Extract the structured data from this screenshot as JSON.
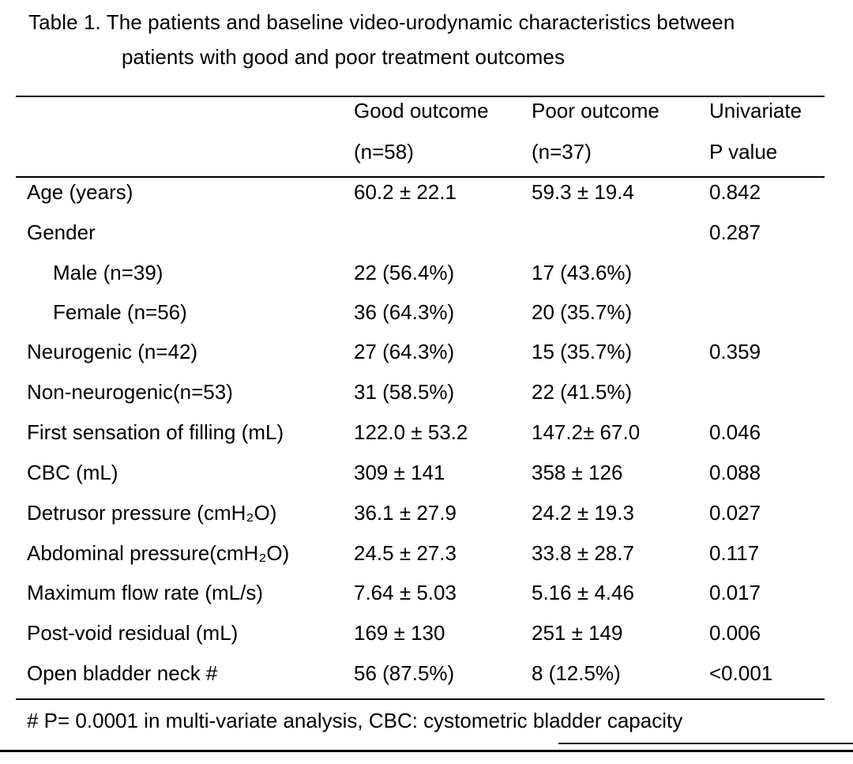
{
  "caption": {
    "line1": "Table 1. The patients and baseline video-urodynamic characteristics between",
    "line2": "patients with good and poor treatment outcomes"
  },
  "header": {
    "good": [
      "Good outcome",
      "(n=58)"
    ],
    "poor": [
      "Poor outcome",
      "(n=37)"
    ],
    "pval": [
      "Univariate",
      "P value"
    ]
  },
  "rows": [
    {
      "label": "Age (years)",
      "good": "60.2 ± 22.1",
      "poor": "59.3 ± 19.4",
      "p": "0.842"
    },
    {
      "label": "Gender",
      "good": "",
      "poor": "",
      "p": "0.287"
    },
    {
      "label": "Male (n=39)",
      "good": "22 (56.4%)",
      "poor": "17 (43.6%)",
      "p": ""
    },
    {
      "label": "Female (n=56)",
      "good": "36 (64.3%)",
      "poor": "20 (35.7%)",
      "p": ""
    },
    {
      "label": "Neurogenic (n=42)",
      "good": "27 (64.3%)",
      "poor": "15 (35.7%)",
      "p": "0.359"
    },
    {
      "label": "Non-neurogenic(n=53)",
      "good": "31 (58.5%)",
      "poor": "22 (41.5%)",
      "p": ""
    },
    {
      "label": "First sensation of filling (mL)",
      "good": "122.0 ± 53.2",
      "poor": "147.2± 67.0",
      "p": "0.046"
    },
    {
      "label": "CBC (mL)",
      "good": "309 ± 141",
      "poor": "358 ± 126",
      "p": "0.088"
    },
    {
      "label": "Detrusor pressure (cmH₂O)",
      "good": "36.1 ± 27.9",
      "poor": "24.2 ± 19.3",
      "p": "0.027"
    },
    {
      "label": "Abdominal pressure(cmH₂O)",
      "good": "24.5 ± 27.3",
      "poor": "33.8 ± 28.7",
      "p": "0.117"
    },
    {
      "label": "Maximum flow rate (mL/s)",
      "good": "7.64 ± 5.03",
      "poor": "5.16 ± 4.46",
      "p": "0.017"
    },
    {
      "label": "Post-void residual (mL)",
      "good": "169 ± 130",
      "poor": "251 ± 149",
      "p": "0.006"
    },
    {
      "label": "Open bladder neck #",
      "good": "56 (87.5%)",
      "poor": "8 (12.5%)",
      "p": "<0.001"
    }
  ],
  "footnote": "# P= 0.0001 in multi-variate analysis, CBC: cystometric bladder capacity"
}
